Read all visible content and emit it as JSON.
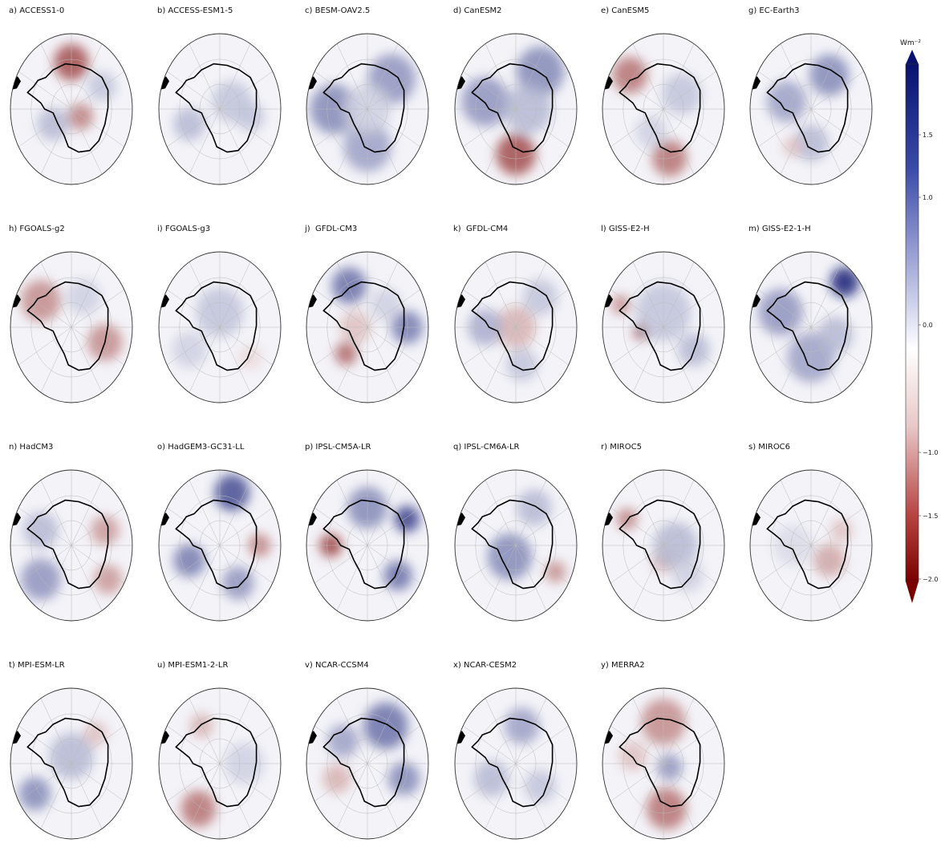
{
  "figure": {
    "colorbar": {
      "unit": "Wm⁻²",
      "ticks": [
        "1.5",
        "1.0",
        "0.0",
        "−1.0",
        "−1.5",
        "−2.0"
      ],
      "colors": {
        "max": "#08126e",
        "mid": "#ffffff",
        "min": "#7a0000"
      }
    },
    "panels": [
      {
        "label": "a) ACCESS1-0",
        "blobs": [
          [
            0.0,
            0.62,
            -1.4,
            0.22
          ],
          [
            0.15,
            -0.1,
            -1.0,
            0.16
          ],
          [
            -0.3,
            -0.2,
            0.6,
            0.2
          ],
          [
            0.5,
            0.3,
            0.5,
            0.18
          ]
        ]
      },
      {
        "label": "b) ACCESS-ESM1-5",
        "blobs": [
          [
            0.2,
            0.1,
            0.5,
            0.25
          ],
          [
            -0.5,
            -0.2,
            0.6,
            0.2
          ],
          [
            0.5,
            -0.1,
            0.5,
            0.18
          ]
        ]
      },
      {
        "label": "c) BESM-OAV2.5",
        "blobs": [
          [
            -0.55,
            0.0,
            1.0,
            0.3
          ],
          [
            0.4,
            0.4,
            0.9,
            0.3
          ],
          [
            0.0,
            -0.5,
            0.8,
            0.3
          ],
          [
            0.0,
            0.0,
            0.4,
            0.3
          ]
        ]
      },
      {
        "label": "d) CanESM2",
        "blobs": [
          [
            0.0,
            -0.6,
            -1.4,
            0.25
          ],
          [
            0.4,
            0.5,
            1.0,
            0.3
          ],
          [
            -0.5,
            0.1,
            0.9,
            0.3
          ],
          [
            0.2,
            0.0,
            0.6,
            0.3
          ]
        ]
      },
      {
        "label": "e) CanESM5",
        "blobs": [
          [
            -0.55,
            0.45,
            -1.1,
            0.22
          ],
          [
            0.1,
            -0.65,
            -1.1,
            0.22
          ],
          [
            0.3,
            0.2,
            0.5,
            0.25
          ],
          [
            -0.2,
            -0.3,
            0.4,
            0.2
          ]
        ]
      },
      {
        "label": "g) EC-Earth3",
        "blobs": [
          [
            0.3,
            0.45,
            1.0,
            0.25
          ],
          [
            -0.4,
            0.1,
            0.8,
            0.25
          ],
          [
            0.0,
            -0.45,
            0.6,
            0.22
          ],
          [
            -0.3,
            -0.5,
            -0.5,
            0.12
          ]
        ]
      },
      {
        "label": "h) FGOALS-g2",
        "blobs": [
          [
            -0.5,
            0.35,
            -0.9,
            0.25
          ],
          [
            0.55,
            -0.2,
            -0.9,
            0.22
          ],
          [
            0.2,
            0.4,
            0.4,
            0.22
          ]
        ]
      },
      {
        "label": "i) FGOALS-g3",
        "blobs": [
          [
            0.0,
            0.2,
            0.5,
            0.3
          ],
          [
            -0.5,
            -0.3,
            0.4,
            0.22
          ],
          [
            0.5,
            -0.4,
            -0.3,
            0.15
          ]
        ]
      },
      {
        "label": "j)  GFDL-CM3",
        "blobs": [
          [
            -0.3,
            0.55,
            1.2,
            0.22
          ],
          [
            0.65,
            0.0,
            1.1,
            0.2
          ],
          [
            -0.35,
            -0.35,
            -1.2,
            0.14
          ],
          [
            -0.2,
            0.0,
            -0.5,
            0.2
          ],
          [
            0.3,
            0.3,
            0.4,
            0.2
          ]
        ]
      },
      {
        "label": "k)  GFDL-CM4",
        "blobs": [
          [
            0.0,
            0.0,
            -0.6,
            0.25
          ],
          [
            -0.5,
            0.0,
            0.7,
            0.22
          ],
          [
            0.4,
            0.4,
            0.5,
            0.22
          ],
          [
            0.1,
            -0.5,
            0.5,
            0.2
          ]
        ]
      },
      {
        "label": "l) GISS-E2-H",
        "blobs": [
          [
            -0.35,
            -0.05,
            -1.8,
            0.1
          ],
          [
            -0.7,
            0.3,
            -0.9,
            0.12
          ],
          [
            0.0,
            0.2,
            0.5,
            0.35
          ],
          [
            0.5,
            -0.3,
            0.6,
            0.2
          ]
        ]
      },
      {
        "label": "m) GISS-E2-1-H",
        "blobs": [
          [
            0.55,
            0.6,
            1.9,
            0.18
          ],
          [
            -0.5,
            0.2,
            0.9,
            0.28
          ],
          [
            0.0,
            -0.4,
            0.8,
            0.3
          ],
          [
            0.4,
            -0.1,
            0.6,
            0.22
          ]
        ]
      },
      {
        "label": "n) HadCM3",
        "blobs": [
          [
            -0.5,
            -0.45,
            0.9,
            0.25
          ],
          [
            0.55,
            0.2,
            -0.8,
            0.18
          ],
          [
            0.6,
            -0.45,
            -0.8,
            0.18
          ],
          [
            -0.5,
            0.2,
            0.6,
            0.22
          ]
        ]
      },
      {
        "label": "o) HadGEM3-GC31-LL",
        "blobs": [
          [
            0.2,
            0.7,
            1.5,
            0.22
          ],
          [
            -0.5,
            -0.2,
            1.1,
            0.2
          ],
          [
            0.65,
            0.0,
            -1.0,
            0.14
          ],
          [
            0.3,
            -0.5,
            0.9,
            0.2
          ]
        ]
      },
      {
        "label": "p) IPSL-CM5A-LR",
        "blobs": [
          [
            -0.6,
            0.0,
            -1.5,
            0.14
          ],
          [
            0.65,
            0.35,
            1.6,
            0.16
          ],
          [
            0.5,
            -0.4,
            1.2,
            0.18
          ],
          [
            0.0,
            0.5,
            1.0,
            0.25
          ]
        ]
      },
      {
        "label": "q) IPSL-CM6A-LR",
        "blobs": [
          [
            -0.1,
            -0.15,
            1.0,
            0.28
          ],
          [
            0.65,
            -0.35,
            -0.9,
            0.13
          ],
          [
            0.3,
            0.5,
            0.6,
            0.22
          ]
        ]
      },
      {
        "label": "r) MIROC5",
        "blobs": [
          [
            -0.6,
            0.35,
            -1.0,
            0.13
          ],
          [
            0.0,
            -0.2,
            -0.6,
            0.15
          ],
          [
            0.2,
            0.0,
            0.6,
            0.28
          ],
          [
            0.4,
            -0.4,
            0.4,
            0.2
          ]
        ]
      },
      {
        "label": "s) MIROC6",
        "blobs": [
          [
            0.3,
            -0.2,
            -0.7,
            0.2
          ],
          [
            0.5,
            0.2,
            -0.5,
            0.14
          ],
          [
            -0.3,
            0.0,
            0.3,
            0.25
          ]
        ]
      },
      {
        "label": "t) MPI-ESM-LR",
        "blobs": [
          [
            -0.6,
            -0.4,
            1.0,
            0.2
          ],
          [
            0.0,
            0.1,
            0.6,
            0.28
          ],
          [
            0.4,
            0.4,
            -0.5,
            0.15
          ]
        ]
      },
      {
        "label": "u) MPI-ESM1-2-LR",
        "blobs": [
          [
            -0.35,
            -0.6,
            -1.1,
            0.22
          ],
          [
            -0.3,
            0.5,
            -0.6,
            0.15
          ],
          [
            0.4,
            0.0,
            0.4,
            0.25
          ]
        ]
      },
      {
        "label": "v) NCAR-CCSM4",
        "blobs": [
          [
            0.3,
            0.5,
            1.2,
            0.28
          ],
          [
            0.6,
            -0.2,
            1.0,
            0.2
          ],
          [
            -0.5,
            -0.2,
            -0.6,
            0.18
          ],
          [
            -0.4,
            0.3,
            0.8,
            0.2
          ]
        ]
      },
      {
        "label": "x) NCAR-CESM2",
        "blobs": [
          [
            0.1,
            0.5,
            0.8,
            0.22
          ],
          [
            -0.4,
            -0.2,
            0.6,
            0.22
          ],
          [
            0.4,
            -0.3,
            0.5,
            0.2
          ]
        ]
      },
      {
        "label": "y) MERRA2",
        "blobs": [
          [
            0.0,
            0.55,
            -0.9,
            0.28
          ],
          [
            0.05,
            -0.6,
            -1.1,
            0.25
          ],
          [
            0.1,
            -0.05,
            0.9,
            0.16
          ],
          [
            -0.5,
            0.1,
            -0.5,
            0.18
          ]
        ]
      }
    ]
  }
}
